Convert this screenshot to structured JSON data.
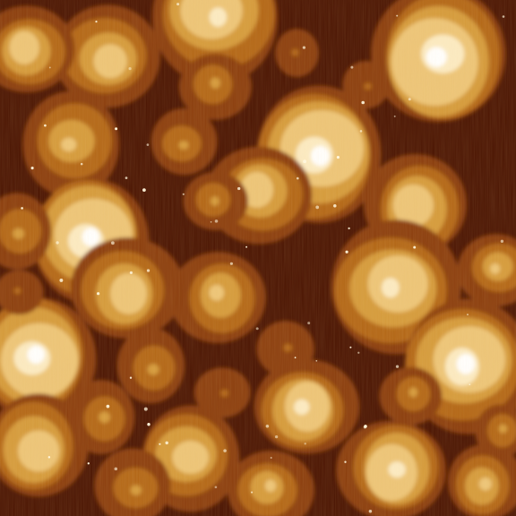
{
  "image": {
    "kind": "afm-height-map",
    "colormap": [
      "#3a0e00",
      "#5e1f04",
      "#8a3c08",
      "#b26614",
      "#d49a3a",
      "#ecc477",
      "#fbeac2",
      "#ffffff"
    ],
    "background_color": "#4a1402",
    "scan_line_color": "#e0a050"
  }
}
